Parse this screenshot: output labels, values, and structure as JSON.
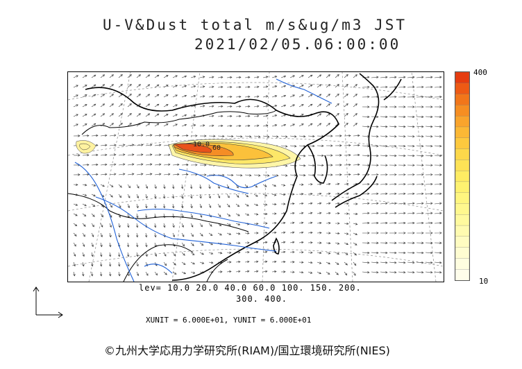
{
  "title": {
    "line1": "U-V&Dust total m/s&ug/m3 JST",
    "line2": "2021/02/05.06:00:00"
  },
  "colorbar": {
    "max_label": "400",
    "min_label": "10",
    "colors": [
      "#e63c0f",
      "#ee5a14",
      "#f2761a",
      "#f68e22",
      "#f9a42c",
      "#fbb835",
      "#fdc93e",
      "#fdd84a",
      "#fee356",
      "#feec63",
      "#fef270",
      "#fff67f",
      "#fff88e",
      "#fffa9e",
      "#fffbb0",
      "#fffcc1",
      "#fffdd1",
      "#fffee0",
      "#fffeeb"
    ]
  },
  "levels": {
    "line1": "lev= 10.0 20.0 40.0 60.0 100. 150. 200.",
    "line2": "300. 400."
  },
  "units": "XUNIT = 6.000E+01, YUNIT = 6.000E+01",
  "copyright": "©九州大学応用力学研究所(RIAM)/国立環境研究所(NIES)",
  "contour_labels": [
    "10.0",
    "60"
  ]
}
